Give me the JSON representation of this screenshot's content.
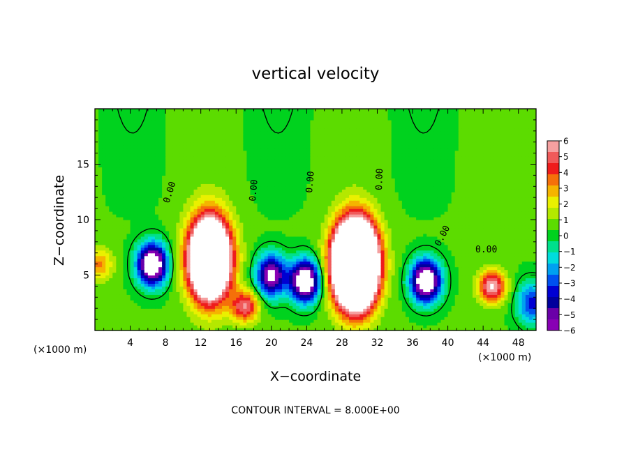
{
  "chart_data": {
    "type": "heatmap",
    "title": "vertical velocity",
    "xlabel": "X−coordinate",
    "ylabel": "Z−coordinate",
    "x_unit_label": "(×1000 m)",
    "x_unit_label_right": "(×1000 m)",
    "xlim": [
      0,
      50
    ],
    "ylim": [
      0,
      20
    ],
    "x_ticks": [
      "4",
      "8",
      "12",
      "16",
      "20",
      "24",
      "28",
      "32",
      "36",
      "40",
      "44",
      "48"
    ],
    "y_ticks": [
      "5",
      "10",
      "15"
    ],
    "colorbar": {
      "min": -6,
      "max": 6,
      "ticks": [
        "6",
        "5",
        "4",
        "3",
        "2",
        "1",
        "0",
        "−1",
        "−2",
        "−3",
        "−4",
        "−5",
        "−6"
      ],
      "colors": [
        "#f5a0a0",
        "#f05a5a",
        "#ef1c1c",
        "#f5700a",
        "#f5b400",
        "#eaf000",
        "#b4e800",
        "#5cdc00",
        "#00d21e",
        "#00e08c",
        "#00dcdc",
        "#00a0f0",
        "#0050f0",
        "#0000d2",
        "#00009c",
        "#6a00a8",
        "#8800b4"
      ]
    },
    "contour_labels": [
      "0.00",
      "0.00",
      "0.00",
      "0.00",
      "0.00",
      "0.00"
    ],
    "footer": "CONTOUR INTERVAL = 8.000E+00",
    "features": [
      {
        "kind": "updraft",
        "x": 13.0,
        "z": 6.5,
        "peak": 16
      },
      {
        "kind": "updraft",
        "x": 29.5,
        "z": 6.0,
        "peak": 24
      },
      {
        "kind": "updraft",
        "x": 45.0,
        "z": 4.0,
        "peak": 6
      },
      {
        "kind": "updraft",
        "x": 17.0,
        "z": 2.2,
        "peak": 5
      },
      {
        "kind": "updraft",
        "x": 0.5,
        "z": 6.0,
        "peak": 3
      },
      {
        "kind": "downdraft",
        "x": 6.5,
        "z": 6.0,
        "peak": -9
      },
      {
        "kind": "downdraft",
        "x": 20.0,
        "z": 5.0,
        "peak": -7
      },
      {
        "kind": "downdraft",
        "x": 23.8,
        "z": 4.5,
        "peak": -9
      },
      {
        "kind": "downdraft",
        "x": 37.5,
        "z": 4.5,
        "peak": -9
      },
      {
        "kind": "downdraft",
        "x": 49.5,
        "z": 2.5,
        "peak": -4
      }
    ]
  }
}
